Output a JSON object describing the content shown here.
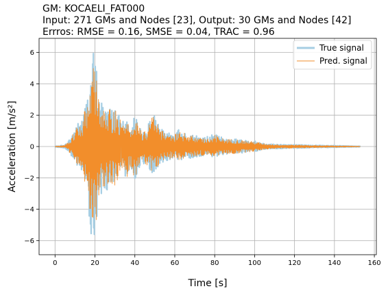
{
  "chart_data": {
    "type": "line",
    "title_lines": [
      "GM: KOCAELI_FAT000",
      "Input: 271 GMs and Nodes [23], Output: 30 GMs and Nodes [42]",
      "Errros: RMSE = 0.16, SMSE = 0.04, TRAC = 0.96"
    ],
    "xlabel": "Time [s]",
    "ylabel": "Acceleration [m/s²]",
    "xlim": [
      -8,
      161
    ],
    "ylim": [
      -6.9,
      6.9
    ],
    "xticks": [
      0,
      20,
      40,
      60,
      80,
      100,
      120,
      140,
      160
    ],
    "yticks": [
      -6,
      -4,
      -2,
      0,
      2,
      4,
      6
    ],
    "ytick_labels": [
      "−6",
      "−4",
      "−2",
      "0",
      "2",
      "4",
      "6"
    ],
    "grid": true,
    "legend_position": "top-right",
    "series": [
      {
        "name": "True signal",
        "color": "#a6cee3",
        "envelope": {
          "t": [
            0,
            5,
            8,
            10,
            12,
            14,
            16,
            18,
            19,
            20,
            21,
            22,
            24,
            26,
            28,
            30,
            32,
            34,
            36,
            38,
            40,
            42,
            44,
            46,
            48,
            50,
            52,
            55,
            60,
            62,
            65,
            70,
            75,
            80,
            85,
            90,
            95,
            100,
            105,
            110,
            115,
            120,
            130,
            140,
            153
          ],
          "upper": [
            0.02,
            0.1,
            0.6,
            1.3,
            1.6,
            2.0,
            3.2,
            4.8,
            6.3,
            5.6,
            5.0,
            3.2,
            2.8,
            3.0,
            2.4,
            2.6,
            2.0,
            1.6,
            1.8,
            1.2,
            2.0,
            1.4,
            1.0,
            1.2,
            1.8,
            2.3,
            1.3,
            0.9,
            0.8,
            1.1,
            0.9,
            0.7,
            0.6,
            0.8,
            0.5,
            0.5,
            0.4,
            0.35,
            0.2,
            0.15,
            0.12,
            0.12,
            0.08,
            0.06,
            0.02
          ],
          "lower": [
            -0.02,
            -0.1,
            -0.6,
            -1.2,
            -1.4,
            -1.9,
            -3.0,
            -5.6,
            -6.2,
            -5.8,
            -4.8,
            -3.4,
            -3.0,
            -2.8,
            -2.5,
            -2.7,
            -2.2,
            -1.6,
            -2.1,
            -1.4,
            -2.2,
            -1.4,
            -1.1,
            -1.3,
            -1.6,
            -2.0,
            -1.2,
            -0.9,
            -0.8,
            -0.9,
            -0.8,
            -0.7,
            -0.6,
            -0.7,
            -0.5,
            -0.5,
            -0.4,
            -0.35,
            -0.2,
            -0.15,
            -0.12,
            -0.12,
            -0.08,
            -0.06,
            -0.02
          ]
        }
      },
      {
        "name": "Pred. signal",
        "color": "#f28e2b",
        "envelope": {
          "t": [
            0,
            5,
            8,
            10,
            12,
            14,
            16,
            18,
            19,
            20,
            21,
            22,
            24,
            26,
            28,
            30,
            32,
            34,
            36,
            38,
            40,
            42,
            44,
            46,
            48,
            50,
            52,
            55,
            60,
            62,
            65,
            70,
            75,
            80,
            85,
            90,
            95,
            100,
            105,
            110,
            115,
            120,
            130,
            140,
            153
          ],
          "upper": [
            0.02,
            0.08,
            0.5,
            1.2,
            1.5,
            1.8,
            3.0,
            4.5,
            6.1,
            5.3,
            4.7,
            3.0,
            2.6,
            2.8,
            2.2,
            2.4,
            1.9,
            1.5,
            1.7,
            1.1,
            1.9,
            1.3,
            0.95,
            1.1,
            1.7,
            2.2,
            1.2,
            0.85,
            0.75,
            1.0,
            0.85,
            0.65,
            0.55,
            0.75,
            0.48,
            0.48,
            0.38,
            0.32,
            0.18,
            0.14,
            0.11,
            0.11,
            0.07,
            0.05,
            0.02
          ],
          "lower": [
            -0.02,
            -0.08,
            -0.5,
            -1.1,
            -1.3,
            -1.8,
            -2.8,
            -5.3,
            -5.9,
            -5.5,
            -4.5,
            -3.2,
            -2.8,
            -2.6,
            -2.3,
            -2.5,
            -2.0,
            -1.5,
            -2.0,
            -1.3,
            -2.1,
            -1.3,
            -1.05,
            -1.2,
            -1.5,
            -1.9,
            -1.1,
            -0.85,
            -0.75,
            -0.85,
            -0.75,
            -0.65,
            -0.55,
            -0.65,
            -0.48,
            -0.48,
            -0.38,
            -0.32,
            -0.18,
            -0.14,
            -0.11,
            -0.11,
            -0.07,
            -0.05,
            -0.02
          ]
        }
      }
    ]
  }
}
